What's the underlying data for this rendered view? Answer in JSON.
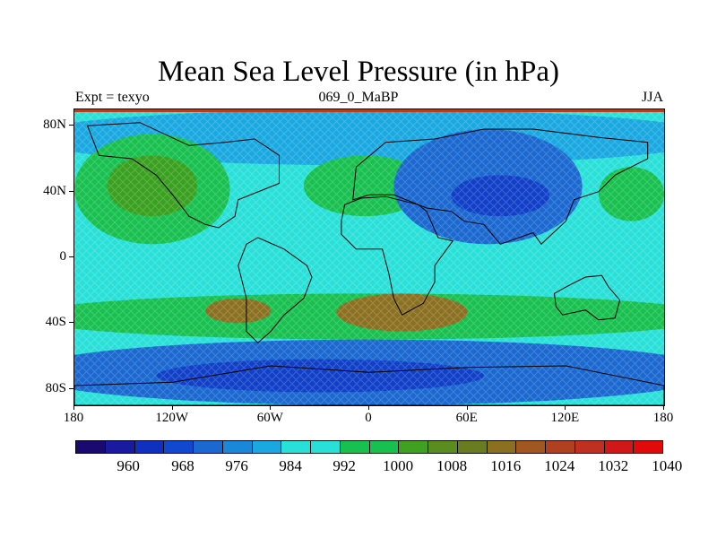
{
  "title": "Mean Sea Level Pressure (in hPa)",
  "subtitle_left": "Expt = texyo",
  "subtitle_center": "069_0_MaBP",
  "subtitle_right": "JJA",
  "map": {
    "lon_range": [
      -180,
      180
    ],
    "lat_range": [
      -90,
      90
    ],
    "lon_ticks": [
      {
        "value": -180,
        "label": "180"
      },
      {
        "value": -120,
        "label": "120W"
      },
      {
        "value": -60,
        "label": "60W"
      },
      {
        "value": 0,
        "label": "0"
      },
      {
        "value": 60,
        "label": "60E"
      },
      {
        "value": 120,
        "label": "120E"
      },
      {
        "value": 180,
        "label": "180"
      }
    ],
    "lat_ticks": [
      {
        "value": 80,
        "label": "80N"
      },
      {
        "value": 40,
        "label": "40N"
      },
      {
        "value": 0,
        "label": "0"
      },
      {
        "value": -40,
        "label": "40S"
      },
      {
        "value": -80,
        "label": "80S"
      }
    ],
    "background_color": "#28e0d8",
    "pressure_fields": [
      {
        "name": "band-north-low",
        "lon_range": [
          -180,
          180
        ],
        "lat_range": [
          56,
          90
        ],
        "color": "#1aa8e0"
      },
      {
        "name": "pacific-high",
        "lon_range": [
          -180,
          -85
        ],
        "lat_range": [
          8,
          75
        ],
        "color": "#18c050"
      },
      {
        "name": "pacific-high-core",
        "lon_range": [
          -160,
          -105
        ],
        "lat_range": [
          25,
          62
        ],
        "color": "#3aa020"
      },
      {
        "name": "atlantic-high",
        "lon_range": [
          -40,
          35
        ],
        "lat_range": [
          25,
          62
        ],
        "color": "#18c050"
      },
      {
        "name": "asia-low",
        "lon_range": [
          15,
          130
        ],
        "lat_range": [
          8,
          78
        ],
        "color": "#1a68d0"
      },
      {
        "name": "asia-low-core",
        "lon_range": [
          50,
          110
        ],
        "lat_range": [
          25,
          50
        ],
        "color": "#1040c8"
      },
      {
        "name": "east-pacific-high",
        "lon_range": [
          140,
          180
        ],
        "lat_range": [
          22,
          55
        ],
        "color": "#18c050"
      },
      {
        "name": "south-subtropical-high",
        "lon_range": [
          -180,
          180
        ],
        "lat_range": [
          -50,
          -22
        ],
        "color": "#18c050"
      },
      {
        "name": "south-high-core-1",
        "lon_range": [
          -100,
          -60
        ],
        "lat_range": [
          -40,
          -25
        ],
        "color": "#8a7020"
      },
      {
        "name": "south-high-core-2",
        "lon_range": [
          -20,
          60
        ],
        "lat_range": [
          -45,
          -22
        ],
        "color": "#8a7020"
      },
      {
        "name": "southern-ocean-low",
        "lon_range": [
          -180,
          180
        ],
        "lat_range": [
          -90,
          -50
        ],
        "color": "#1a68d0"
      },
      {
        "name": "southern-ocean-deep-low",
        "lon_range": [
          -130,
          70
        ],
        "lat_range": [
          -82,
          -62
        ],
        "color": "#1040c8"
      }
    ],
    "continents": [
      {
        "name": "north-america",
        "points": [
          [
            -172,
            80
          ],
          [
            -140,
            82
          ],
          [
            -110,
            68
          ],
          [
            -88,
            70
          ],
          [
            -70,
            72
          ],
          [
            -55,
            62
          ],
          [
            -55,
            45
          ],
          [
            -80,
            35
          ],
          [
            -82,
            25
          ],
          [
            -92,
            18
          ],
          [
            -100,
            20
          ],
          [
            -110,
            25
          ],
          [
            -120,
            38
          ],
          [
            -130,
            50
          ],
          [
            -145,
            60
          ],
          [
            -165,
            62
          ]
        ]
      },
      {
        "name": "south-america",
        "points": [
          [
            -68,
            12
          ],
          [
            -52,
            5
          ],
          [
            -38,
            -5
          ],
          [
            -35,
            -12
          ],
          [
            -40,
            -25
          ],
          [
            -52,
            -35
          ],
          [
            -60,
            -45
          ],
          [
            -68,
            -52
          ],
          [
            -75,
            -45
          ],
          [
            -75,
            -25
          ],
          [
            -80,
            -5
          ],
          [
            -75,
            8
          ]
        ]
      },
      {
        "name": "eurasia",
        "points": [
          [
            -10,
            35
          ],
          [
            -8,
            55
          ],
          [
            10,
            70
          ],
          [
            40,
            72
          ],
          [
            70,
            78
          ],
          [
            100,
            78
          ],
          [
            140,
            73
          ],
          [
            170,
            70
          ],
          [
            170,
            60
          ],
          [
            150,
            50
          ],
          [
            140,
            40
          ],
          [
            125,
            35
          ],
          [
            120,
            22
          ],
          [
            105,
            8
          ],
          [
            100,
            15
          ],
          [
            80,
            8
          ],
          [
            70,
            20
          ],
          [
            58,
            22
          ],
          [
            50,
            28
          ],
          [
            35,
            30
          ],
          [
            15,
            38
          ],
          [
            0,
            38
          ]
        ]
      },
      {
        "name": "africa",
        "points": [
          [
            -17,
            22
          ],
          [
            -15,
            32
          ],
          [
            -5,
            36
          ],
          [
            10,
            37
          ],
          [
            30,
            32
          ],
          [
            35,
            28
          ],
          [
            42,
            12
          ],
          [
            51,
            10
          ],
          [
            40,
            -5
          ],
          [
            40,
            -15
          ],
          [
            33,
            -28
          ],
          [
            20,
            -35
          ],
          [
            15,
            -25
          ],
          [
            12,
            -10
          ],
          [
            8,
            5
          ],
          [
            -8,
            5
          ],
          [
            -17,
            14
          ]
        ]
      },
      {
        "name": "australia",
        "points": [
          [
            113,
            -22
          ],
          [
            122,
            -17
          ],
          [
            132,
            -12
          ],
          [
            142,
            -11
          ],
          [
            146,
            -18
          ],
          [
            153,
            -26
          ],
          [
            150,
            -37
          ],
          [
            140,
            -38
          ],
          [
            132,
            -32
          ],
          [
            118,
            -35
          ],
          [
            114,
            -30
          ]
        ]
      },
      {
        "name": "antarctica",
        "points": [
          [
            -180,
            -78
          ],
          [
            -120,
            -76
          ],
          [
            -60,
            -66
          ],
          [
            0,
            -70
          ],
          [
            60,
            -67
          ],
          [
            120,
            -66
          ],
          [
            180,
            -78
          ],
          [
            180,
            -90
          ],
          [
            -180,
            -90
          ]
        ]
      }
    ]
  },
  "colorbar": {
    "colors": [
      "#1a0a70",
      "#1a1aa0",
      "#1030c0",
      "#1048d0",
      "#1a68d0",
      "#1a88d8",
      "#1aa8e0",
      "#28e0d8",
      "#28e0d8",
      "#18c050",
      "#18c050",
      "#40a020",
      "#5a8c20",
      "#6a7c20",
      "#8a7020",
      "#a05820",
      "#b04020",
      "#c03020",
      "#d01818",
      "#e00a0a"
    ],
    "labels": [
      {
        "text": "960",
        "pos": 0.0985
      },
      {
        "text": "968",
        "pos": 0.2
      },
      {
        "text": "976",
        "pos": 0.3
      },
      {
        "text": "984",
        "pos": 0.4
      },
      {
        "text": "992",
        "pos": 0.5
      },
      {
        "text": "1000",
        "pos": 0.6
      },
      {
        "text": "1008",
        "pos": 0.7
      },
      {
        "text": "1016",
        "pos": 0.8
      },
      {
        "text": "1024",
        "pos": 0.9
      },
      {
        "text": "1032",
        "pos": 1.0
      },
      {
        "text": "1040",
        "pos": 1.1
      }
    ]
  }
}
